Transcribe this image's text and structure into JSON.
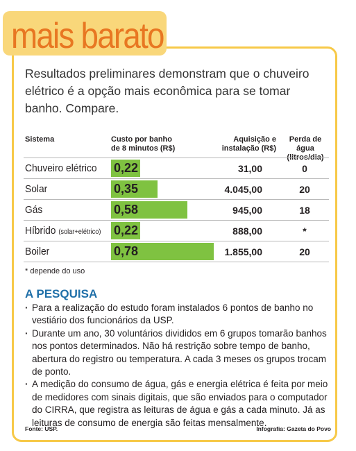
{
  "title": "mais barato",
  "intro": "Resultados preliminares demonstram que o chuveiro elétrico é a opção mais econômica para se tomar banho. Compare.",
  "headers": {
    "sistema": "Sistema",
    "custo_l1": "Custo por banho",
    "custo_l2": "de 8 minutos (R$)",
    "aquis_l1": "Aquisição e",
    "aquis_l2": "instalação (R$)",
    "perda_l1": "Perda de água",
    "perda_l2": "(litros/dia)"
  },
  "chart_data": {
    "type": "bar",
    "categories": [
      "Chuveiro elétrico",
      "Solar",
      "Gás",
      "Híbrido",
      "Boiler"
    ],
    "category_notes": [
      "",
      "",
      "",
      "(solar+elétrico)",
      ""
    ],
    "values": [
      0.22,
      0.35,
      0.58,
      0.22,
      0.78
    ],
    "value_labels": [
      "0,22",
      "0,35",
      "0,58",
      "0,22",
      "0,78"
    ],
    "aquisicao": [
      "31,00",
      "4.045,00",
      "945,00",
      "888,00",
      "1.855,00"
    ],
    "perda_agua": [
      "0",
      "20",
      "18",
      "*",
      "20"
    ],
    "bar_color": "#7fc241",
    "xlim": [
      0,
      1
    ]
  },
  "footnote": "* depende do uso",
  "section_title": "A PESQUISA",
  "bullets": [
    "Para a realização do estudo foram instalados 6 pontos de banho no vestiário dos funcionários da USP.",
    "Durante um ano, 30 voluntários divididos em 6 grupos tomarão banhos nos pontos determinados. Não há restrição sobre tempo de banho, abertura do registro ou temperatura. A cada 3 meses os grupos trocam de ponto.",
    "A medição do consumo de água, gás e energia elétrica é feita por meio de medidores com sinais digitais, que são enviados para o computador do CIRRA, que registra as leituras de água e gás a cada minuto. Já as leituras de consumo de energia são feitas mensalmente."
  ],
  "fonte": "Fonte: USP.",
  "credito": "Infografia: Gazeta do Povo",
  "colors": {
    "frame": "#f7c948",
    "title_tab": "#f9d77a",
    "title_text": "#e87722",
    "section": "#1f6fa8"
  }
}
